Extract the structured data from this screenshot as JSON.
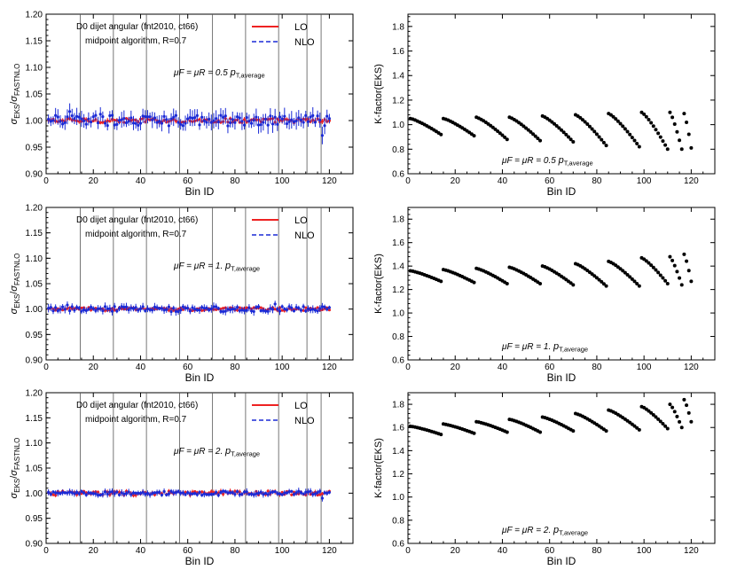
{
  "colors": {
    "lo": "#ee2222",
    "nlo": "#1a2ad6",
    "kfactor": "#000000",
    "frame": "#000000",
    "separator": "#555555"
  },
  "chart_data": [
    {
      "type": "scatter",
      "panel": "ratio-mu-0.5",
      "xlabel": "Bin ID",
      "ylabel": "σEKS/σFASTNLO",
      "ylabel_parts": {
        "sigma": "σ",
        "num": "EKS",
        "den": "FASTNLO"
      },
      "xlim": [
        0,
        130
      ],
      "ylim": [
        0.9,
        1.2
      ],
      "xticks": [
        "0",
        "20",
        "40",
        "60",
        "80",
        "100",
        "120"
      ],
      "yticks": [
        "0.90",
        "0.95",
        "1.00",
        "1.05",
        "1.10",
        "1.15",
        "1.20"
      ],
      "annotations": {
        "line1": "D0 dijet angular (fnt2010, ct66)",
        "line2": "midpoint algorithm, R=0.7",
        "scale_prefix": "μF = μR = 0.5 ",
        "scale_p": "p",
        "scale_sub": "T,average"
      },
      "legend": [
        {
          "name": "LO",
          "style": "solid"
        },
        {
          "name": "NLO",
          "style": "dashed"
        }
      ],
      "separators": [
        14.5,
        28.5,
        42.5,
        56.5,
        70.5,
        84.5,
        98.5,
        110.5,
        116.5
      ],
      "series": [
        {
          "name": "LO",
          "x_range": [
            1,
            120
          ],
          "center": 1.0,
          "spread": 0.004,
          "error": 0.004
        },
        {
          "name": "NLO",
          "x_range": [
            1,
            120
          ],
          "center": 1.0,
          "spread": 0.01,
          "error": 0.012,
          "outliers": [
            {
              "x": 10,
              "y": 1.017
            },
            {
              "x": 23,
              "y": 1.012
            },
            {
              "x": 117,
              "y": 0.972
            }
          ]
        }
      ]
    },
    {
      "type": "scatter",
      "panel": "ratio-mu-1",
      "xlabel": "Bin ID",
      "ylabel": "σEKS/σFASTNLO",
      "ylabel_parts": {
        "sigma": "σ",
        "num": "EKS",
        "den": "FASTNLO"
      },
      "xlim": [
        0,
        130
      ],
      "ylim": [
        0.9,
        1.2
      ],
      "xticks": [
        "0",
        "20",
        "40",
        "60",
        "80",
        "100",
        "120"
      ],
      "yticks": [
        "0.90",
        "0.95",
        "1.00",
        "1.05",
        "1.10",
        "1.15",
        "1.20"
      ],
      "annotations": {
        "line1": "D0 dijet angular (fnt2010, ct66)",
        "line2": "midpoint algorithm, R=0.7",
        "scale_prefix": "μF = μR = 1. ",
        "scale_p": "p",
        "scale_sub": "T,average"
      },
      "legend": [
        {
          "name": "LO",
          "style": "solid"
        },
        {
          "name": "NLO",
          "style": "dashed"
        }
      ],
      "separators": [
        14.5,
        28.5,
        42.5,
        56.5,
        70.5,
        84.5,
        98.5,
        110.5,
        116.5
      ],
      "series": [
        {
          "name": "LO",
          "x_range": [
            1,
            120
          ],
          "center": 1.0,
          "spread": 0.003,
          "error": 0.003
        },
        {
          "name": "NLO",
          "x_range": [
            1,
            120
          ],
          "center": 1.0,
          "spread": 0.005,
          "error": 0.006,
          "outliers": [
            {
              "x": 9,
              "y": 1.008
            },
            {
              "x": 97,
              "y": 1.01
            }
          ]
        }
      ]
    },
    {
      "type": "scatter",
      "panel": "ratio-mu-2",
      "xlabel": "Bin ID",
      "ylabel": "σEKS/σFASTNLO",
      "ylabel_parts": {
        "sigma": "σ",
        "num": "EKS",
        "den": "FASTNLO"
      },
      "xlim": [
        0,
        130
      ],
      "ylim": [
        0.9,
        1.2
      ],
      "xticks": [
        "0",
        "20",
        "40",
        "60",
        "80",
        "100",
        "120"
      ],
      "yticks": [
        "0.90",
        "0.95",
        "1.00",
        "1.05",
        "1.10",
        "1.15",
        "1.20"
      ],
      "annotations": {
        "line1": "D0 dijet angular (fnt2010, ct66)",
        "line2": "midpoint algorithm, R=0.7",
        "scale_prefix": "μF = μR = 2. ",
        "scale_p": "p",
        "scale_sub": "T,average"
      },
      "legend": [
        {
          "name": "LO",
          "style": "solid"
        },
        {
          "name": "NLO",
          "style": "dashed"
        }
      ],
      "separators": [
        14.5,
        28.5,
        42.5,
        56.5,
        70.5,
        84.5,
        98.5,
        110.5,
        116.5
      ],
      "series": [
        {
          "name": "LO",
          "x_range": [
            1,
            120
          ],
          "center": 1.0,
          "spread": 0.004,
          "error": 0.004
        },
        {
          "name": "NLO",
          "x_range": [
            1,
            120
          ],
          "center": 1.0,
          "spread": 0.004,
          "error": 0.005,
          "outliers": [
            {
              "x": 117,
              "y": 0.99
            }
          ]
        }
      ]
    },
    {
      "type": "scatter",
      "panel": "kfactor-mu-0.5",
      "xlabel": "Bin ID",
      "ylabel": "K-factor(EKS)",
      "xlim": [
        0,
        130
      ],
      "ylim": [
        0.6,
        1.9
      ],
      "xticks": [
        "0",
        "20",
        "40",
        "60",
        "80",
        "100",
        "120"
      ],
      "yticks": [
        "0.6",
        "0.8",
        "1.0",
        "1.2",
        "1.4",
        "1.6",
        "1.8"
      ],
      "annotations": {
        "scale_prefix": "μF = μR = 0.5 ",
        "scale_p": "p",
        "scale_sub": "T,average"
      },
      "groups": [
        {
          "x_start": 1,
          "x_end": 14,
          "y_start": 1.05,
          "y_end": 0.92
        },
        {
          "x_start": 15,
          "x_end": 28,
          "y_start": 1.05,
          "y_end": 0.91
        },
        {
          "x_start": 29,
          "x_end": 42,
          "y_start": 1.06,
          "y_end": 0.88
        },
        {
          "x_start": 43,
          "x_end": 56,
          "y_start": 1.06,
          "y_end": 0.87
        },
        {
          "x_start": 57,
          "x_end": 70,
          "y_start": 1.07,
          "y_end": 0.86
        },
        {
          "x_start": 71,
          "x_end": 84,
          "y_start": 1.08,
          "y_end": 0.83
        },
        {
          "x_start": 85,
          "x_end": 98,
          "y_start": 1.09,
          "y_end": 0.82
        },
        {
          "x_start": 99,
          "x_end": 110,
          "y_start": 1.1,
          "y_end": 0.8
        },
        {
          "x_start": 111,
          "x_end": 116,
          "y_start": 1.1,
          "y_end": 0.8
        },
        {
          "x_start": 117,
          "x_end": 120,
          "y_start": 1.09,
          "y_end": 0.81
        }
      ]
    },
    {
      "type": "scatter",
      "panel": "kfactor-mu-1",
      "xlabel": "Bin ID",
      "ylabel": "K-factor(EKS)",
      "xlim": [
        0,
        130
      ],
      "ylim": [
        0.6,
        1.9
      ],
      "xticks": [
        "0",
        "20",
        "40",
        "60",
        "80",
        "100",
        "120"
      ],
      "yticks": [
        "0.6",
        "0.8",
        "1.0",
        "1.2",
        "1.4",
        "1.6",
        "1.8"
      ],
      "annotations": {
        "scale_prefix": "μF = μR = 1. ",
        "scale_p": "p",
        "scale_sub": "T,average"
      },
      "groups": [
        {
          "x_start": 1,
          "x_end": 14,
          "y_start": 1.36,
          "y_end": 1.27
        },
        {
          "x_start": 15,
          "x_end": 28,
          "y_start": 1.37,
          "y_end": 1.26
        },
        {
          "x_start": 29,
          "x_end": 42,
          "y_start": 1.38,
          "y_end": 1.25
        },
        {
          "x_start": 43,
          "x_end": 56,
          "y_start": 1.39,
          "y_end": 1.25
        },
        {
          "x_start": 57,
          "x_end": 70,
          "y_start": 1.4,
          "y_end": 1.24
        },
        {
          "x_start": 71,
          "x_end": 84,
          "y_start": 1.42,
          "y_end": 1.23
        },
        {
          "x_start": 85,
          "x_end": 98,
          "y_start": 1.44,
          "y_end": 1.23
        },
        {
          "x_start": 99,
          "x_end": 110,
          "y_start": 1.47,
          "y_end": 1.25
        },
        {
          "x_start": 111,
          "x_end": 116,
          "y_start": 1.48,
          "y_end": 1.24
        },
        {
          "x_start": 117,
          "x_end": 120,
          "y_start": 1.5,
          "y_end": 1.27
        }
      ]
    },
    {
      "type": "scatter",
      "panel": "kfactor-mu-2",
      "xlabel": "Bin ID",
      "ylabel": "K-factor(EKS)",
      "xlim": [
        0,
        130
      ],
      "ylim": [
        0.6,
        1.9
      ],
      "xticks": [
        "0",
        "20",
        "40",
        "60",
        "80",
        "100",
        "120"
      ],
      "yticks": [
        "0.6",
        "0.8",
        "1.0",
        "1.2",
        "1.4",
        "1.6",
        "1.8"
      ],
      "annotations": {
        "scale_prefix": "μF = μR = 2. ",
        "scale_p": "p",
        "scale_sub": "T,average"
      },
      "groups": [
        {
          "x_start": 1,
          "x_end": 14,
          "y_start": 1.61,
          "y_end": 1.54
        },
        {
          "x_start": 15,
          "x_end": 28,
          "y_start": 1.63,
          "y_end": 1.55
        },
        {
          "x_start": 29,
          "x_end": 42,
          "y_start": 1.65,
          "y_end": 1.56
        },
        {
          "x_start": 43,
          "x_end": 56,
          "y_start": 1.67,
          "y_end": 1.56
        },
        {
          "x_start": 57,
          "x_end": 70,
          "y_start": 1.69,
          "y_end": 1.57
        },
        {
          "x_start": 71,
          "x_end": 84,
          "y_start": 1.72,
          "y_end": 1.57
        },
        {
          "x_start": 85,
          "x_end": 98,
          "y_start": 1.75,
          "y_end": 1.58
        },
        {
          "x_start": 99,
          "x_end": 110,
          "y_start": 1.78,
          "y_end": 1.59
        },
        {
          "x_start": 111,
          "x_end": 116,
          "y_start": 1.8,
          "y_end": 1.6
        },
        {
          "x_start": 117,
          "x_end": 120,
          "y_start": 1.84,
          "y_end": 1.65
        }
      ]
    }
  ]
}
